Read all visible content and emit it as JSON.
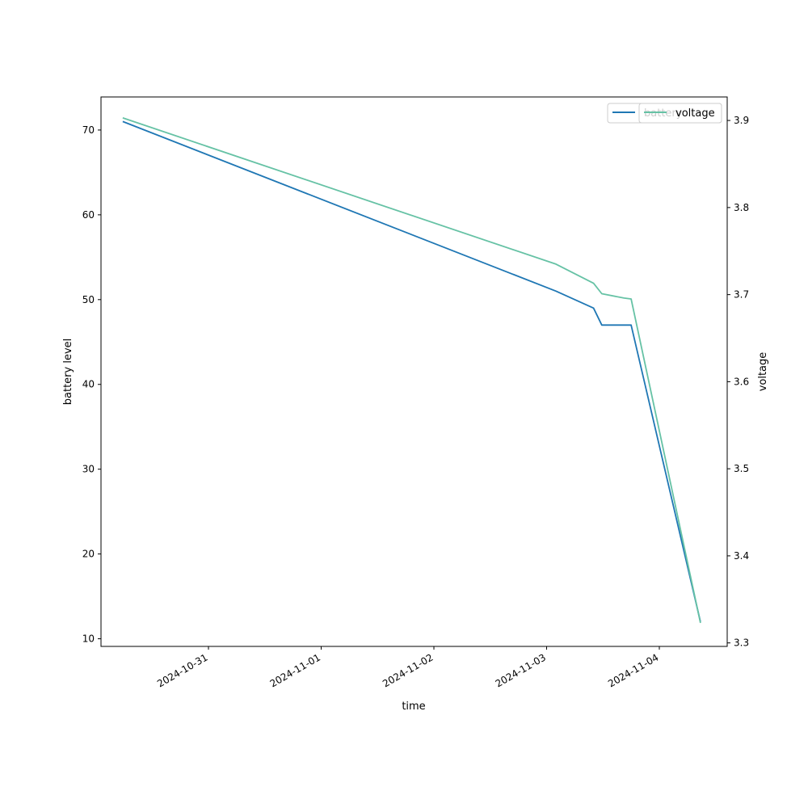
{
  "chart_data": {
    "type": "line",
    "xlabel": "time",
    "ylabel_left": "battery level",
    "ylabel_right": "voltage",
    "x_ticks": [
      "2024-10-31",
      "2024-11-01",
      "2024-11-02",
      "2024-11-03",
      "2024-11-04"
    ],
    "y_left_ticks": [
      "10",
      "20",
      "30",
      "40",
      "50",
      "60",
      "70"
    ],
    "y_right_ticks": [
      "3.3",
      "3.4",
      "3.5",
      "3.6",
      "3.7",
      "3.8",
      "3.9"
    ],
    "y_left_lim": [
      9.1,
      73.9
    ],
    "y_right_lim": [
      3.296,
      3.927
    ],
    "legends": [
      {
        "labels": [
          "battery",
          "voltage"
        ],
        "location": "upper right"
      }
    ],
    "series": [
      {
        "name": "battery",
        "axis": "left",
        "color": "#1f77b4",
        "points": [
          {
            "x": "2024-10-30 05:45",
            "y": 71
          },
          {
            "x": "2024-11-03 02:00",
            "y": 51
          },
          {
            "x": "2024-11-03 10:00",
            "y": 49
          },
          {
            "x": "2024-11-03 11:45",
            "y": 47
          },
          {
            "x": "2024-11-03 18:00",
            "y": 47
          },
          {
            "x": "2024-11-04 08:45",
            "y": 12
          }
        ]
      },
      {
        "name": "voltage",
        "axis": "right",
        "color": "#66c2a5",
        "points": [
          {
            "x": "2024-10-30 05:45",
            "y": 3.903
          },
          {
            "x": "2024-11-03 02:00",
            "y": 3.735
          },
          {
            "x": "2024-11-03 10:00",
            "y": 3.713
          },
          {
            "x": "2024-11-03 11:45",
            "y": 3.701
          },
          {
            "x": "2024-11-03 16:30",
            "y": 3.696
          },
          {
            "x": "2024-11-03 18:00",
            "y": 3.695
          },
          {
            "x": "2024-11-04 08:45",
            "y": 3.323
          }
        ]
      }
    ]
  }
}
